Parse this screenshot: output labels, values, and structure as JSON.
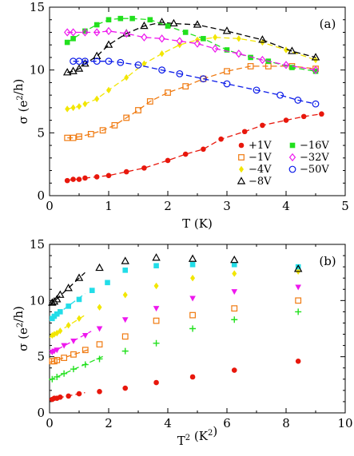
{
  "chart_data": [
    {
      "type": "scatter",
      "panel_label": "(a)",
      "xlabel": "T (K)",
      "ylabel": "σ (e²/h)",
      "xlim": [
        0,
        5
      ],
      "ylim": [
        0,
        15
      ],
      "xticks": [
        0,
        1,
        2,
        3,
        4,
        5
      ],
      "yticks": [
        0,
        5,
        10,
        15
      ],
      "legend_position": "bottom-right",
      "series": [
        {
          "name": "+1V",
          "color": "#e8170c",
          "marker": "circle-filled",
          "x": [
            0.3,
            0.4,
            0.5,
            0.6,
            0.8,
            1.0,
            1.3,
            1.6,
            2.0,
            2.3,
            2.6,
            2.9,
            3.3,
            3.6,
            4.0,
            4.3,
            4.6
          ],
          "y": [
            1.2,
            1.3,
            1.3,
            1.4,
            1.5,
            1.6,
            1.9,
            2.2,
            2.8,
            3.3,
            3.7,
            4.5,
            5.1,
            5.6,
            6.0,
            6.3,
            6.5
          ]
        },
        {
          "name": "−1V",
          "color": "#f07a10",
          "marker": "square-open",
          "x": [
            0.3,
            0.4,
            0.5,
            0.7,
            0.9,
            1.1,
            1.3,
            1.5,
            1.7,
            2.0,
            2.3,
            2.6,
            3.0,
            3.4,
            3.7,
            4.1,
            4.5
          ],
          "y": [
            4.6,
            4.6,
            4.7,
            4.9,
            5.2,
            5.6,
            6.2,
            6.8,
            7.5,
            8.2,
            8.7,
            9.3,
            9.9,
            10.3,
            10.3,
            10.3,
            10.1
          ]
        },
        {
          "name": "−4V",
          "color": "#f2e600",
          "marker": "diamond-filled",
          "x": [
            0.3,
            0.4,
            0.5,
            0.6,
            0.8,
            1.0,
            1.3,
            1.6,
            1.9,
            2.2,
            2.5,
            2.8,
            3.2,
            3.6,
            4.0,
            4.5
          ],
          "y": [
            6.9,
            7.0,
            7.1,
            7.3,
            7.7,
            8.4,
            9.4,
            10.5,
            11.3,
            12.0,
            12.4,
            12.6,
            12.5,
            12.2,
            11.6,
            10.8
          ]
        },
        {
          "name": "−8V",
          "color": "#000000",
          "marker": "triangle-open",
          "x": [
            0.3,
            0.4,
            0.5,
            0.6,
            0.8,
            1.0,
            1.3,
            1.6,
            1.9,
            2.1,
            2.5,
            3.0,
            3.6,
            4.1,
            4.5
          ],
          "y": [
            9.8,
            9.9,
            10.1,
            10.5,
            11.1,
            12.0,
            12.9,
            13.5,
            13.8,
            13.7,
            13.6,
            13.1,
            12.4,
            11.5,
            11.0
          ]
        },
        {
          "name": "−16V",
          "color": "#22e01e",
          "marker": "square-filled",
          "x": [
            0.3,
            0.4,
            0.6,
            0.8,
            1.0,
            1.2,
            1.4,
            1.7,
            2.0,
            2.3,
            2.6,
            3.0,
            3.4,
            3.7,
            4.1,
            4.5
          ],
          "y": [
            12.2,
            12.5,
            13.1,
            13.6,
            14.0,
            14.1,
            14.1,
            14.0,
            13.5,
            13.0,
            12.5,
            11.6,
            11.0,
            10.7,
            10.2,
            9.9
          ]
        },
        {
          "name": "−32V",
          "color": "#ee18ee",
          "marker": "diamond-open",
          "x": [
            0.3,
            0.4,
            0.6,
            0.8,
            1.0,
            1.3,
            1.6,
            1.9,
            2.2,
            2.5,
            2.8,
            3.2,
            3.6,
            4.0,
            4.5
          ],
          "y": [
            13.0,
            13.0,
            13.0,
            13.0,
            13.1,
            12.9,
            12.6,
            12.5,
            12.3,
            12.1,
            11.7,
            11.3,
            10.8,
            10.4,
            10.0
          ]
        },
        {
          "name": "−50V",
          "color": "#0a1ae8",
          "marker": "circle-open",
          "x": [
            0.4,
            0.5,
            0.6,
            0.8,
            1.0,
            1.2,
            1.5,
            1.9,
            2.2,
            2.6,
            3.0,
            3.5,
            3.9,
            4.2,
            4.5
          ],
          "y": [
            10.7,
            10.7,
            10.7,
            10.7,
            10.7,
            10.6,
            10.4,
            10.0,
            9.7,
            9.3,
            8.9,
            8.4,
            8.0,
            7.6,
            7.3
          ]
        }
      ]
    },
    {
      "type": "scatter",
      "panel_label": "(b)",
      "xlabel": "T² (K²)",
      "ylabel": "σ (e²/h)",
      "xlim": [
        0,
        10
      ],
      "ylim": [
        0,
        15
      ],
      "xticks": [
        0,
        2,
        4,
        6,
        8,
        10
      ],
      "yticks": [
        0,
        5,
        10,
        15
      ],
      "series": [
        {
          "name": "+1V",
          "color": "#e8170c",
          "marker": "circle-filled",
          "x": [
            0.09,
            0.16,
            0.25,
            0.36,
            0.64,
            1.0,
            1.69,
            2.56,
            3.61,
            4.84,
            6.25,
            8.41
          ],
          "y": [
            1.2,
            1.3,
            1.3,
            1.4,
            1.5,
            1.7,
            1.9,
            2.2,
            2.7,
            3.2,
            3.8,
            4.6
          ]
        },
        {
          "name": "−1V",
          "color": "#f07a10",
          "marker": "square-open",
          "x": [
            0.09,
            0.16,
            0.25,
            0.49,
            0.81,
            1.21,
            1.69,
            2.56,
            3.61,
            4.84,
            6.25,
            8.41
          ],
          "y": [
            4.6,
            4.6,
            4.7,
            4.9,
            5.2,
            5.6,
            6.1,
            6.8,
            8.2,
            8.7,
            9.3,
            10.0
          ]
        },
        {
          "name": "",
          "color": "#22e01e",
          "marker": "plus",
          "x": [
            0.09,
            0.25,
            0.49,
            0.81,
            1.21,
            1.69,
            2.56,
            3.61,
            4.84,
            6.25,
            8.41
          ],
          "y": [
            3.0,
            3.2,
            3.5,
            3.9,
            4.3,
            4.8,
            5.5,
            6.2,
            7.5,
            8.3,
            9.0
          ]
        },
        {
          "name": "",
          "color": "#ee18ee",
          "marker": "triangle-down-filled",
          "x": [
            0.09,
            0.16,
            0.25,
            0.49,
            0.81,
            1.21,
            1.69,
            2.56,
            3.61,
            4.84,
            6.25,
            8.41
          ],
          "y": [
            5.4,
            5.5,
            5.6,
            6.0,
            6.4,
            6.9,
            7.5,
            8.3,
            9.3,
            10.2,
            10.8,
            11.2
          ]
        },
        {
          "name": "−4V",
          "color": "#f2e600",
          "marker": "diamond-filled",
          "x": [
            0.09,
            0.16,
            0.25,
            0.36,
            0.64,
            1.0,
            1.69,
            2.56,
            3.61,
            4.84,
            6.25,
            8.41
          ],
          "y": [
            6.9,
            7.0,
            7.1,
            7.3,
            7.8,
            8.4,
            9.4,
            10.5,
            11.3,
            12.0,
            12.4,
            12.6
          ]
        },
        {
          "name": "",
          "color": "#22dde8",
          "marker": "square-filled",
          "x": [
            0.09,
            0.16,
            0.25,
            0.36,
            0.64,
            1.0,
            1.44,
            1.96,
            2.56,
            3.61,
            4.84,
            6.25,
            8.41
          ],
          "y": [
            8.4,
            8.6,
            8.8,
            9.0,
            9.5,
            10.1,
            10.9,
            11.6,
            12.7,
            13.1,
            13.2,
            13.2,
            13.0
          ]
        },
        {
          "name": "−8V",
          "color": "#000000",
          "marker": "triangle-open",
          "x": [
            0.09,
            0.16,
            0.25,
            0.36,
            0.64,
            1.0,
            1.69,
            2.56,
            3.61,
            4.84,
            6.25,
            8.41
          ],
          "y": [
            9.8,
            9.9,
            10.1,
            10.5,
            11.1,
            12.0,
            12.9,
            13.5,
            13.8,
            13.7,
            13.6,
            12.8
          ]
        }
      ]
    }
  ]
}
